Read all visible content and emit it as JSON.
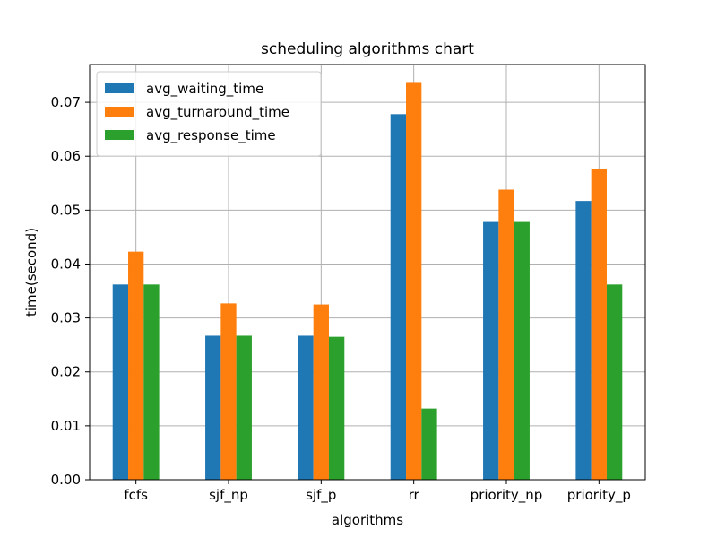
{
  "chart_data": {
    "type": "bar",
    "title": "scheduling algorithms chart",
    "xlabel": "algorithms",
    "ylabel": "time(second)",
    "categories": [
      "fcfs",
      "sjf_np",
      "sjf_p",
      "rr",
      "priority_np",
      "priority_p"
    ],
    "ylim": [
      0,
      0.077
    ],
    "yticks": [
      0.0,
      0.01,
      0.02,
      0.03,
      0.04,
      0.05,
      0.06,
      0.07
    ],
    "ytick_labels": [
      "0.00",
      "0.01",
      "0.02",
      "0.03",
      "0.04",
      "0.05",
      "0.06",
      "0.07"
    ],
    "grid": true,
    "legend_position": "top-left",
    "series": [
      {
        "name": "avg_waiting_time",
        "color": "#1f77b4",
        "values": [
          0.0362,
          0.0267,
          0.0267,
          0.0678,
          0.0478,
          0.0517
        ]
      },
      {
        "name": "avg_turnaround_time",
        "color": "#ff7f0e",
        "values": [
          0.0423,
          0.0327,
          0.0325,
          0.0736,
          0.0538,
          0.0576
        ]
      },
      {
        "name": "avg_response_time",
        "color": "#2ca02c",
        "values": [
          0.0362,
          0.0267,
          0.0265,
          0.0132,
          0.0478,
          0.0362
        ]
      }
    ]
  }
}
